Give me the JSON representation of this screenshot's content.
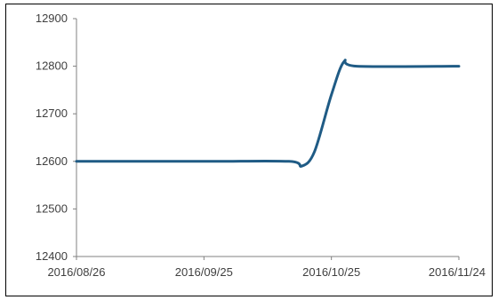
{
  "chart_data": {
    "type": "line",
    "title": "",
    "xlabel": "",
    "ylabel": "",
    "x_ticks": [
      "2016/08/26",
      "2016/09/25",
      "2016/10/25",
      "2016/11/24"
    ],
    "y_ticks": [
      "12400",
      "12500",
      "12600",
      "12700",
      "12800",
      "12900"
    ],
    "ylim": [
      12400,
      12900
    ],
    "x_range": [
      "2016/08/26",
      "2016/11/24"
    ],
    "grid": false,
    "legend": "none",
    "series": [
      {
        "color": "#1f5b85",
        "points": [
          {
            "x": "2016/08/26",
            "y": 12600
          },
          {
            "x": "2016/09/25",
            "y": 12600
          },
          {
            "x": "2016/10/15",
            "y": 12600
          },
          {
            "x": "2016/10/18",
            "y": 12590
          },
          {
            "x": "2016/10/21",
            "y": 12620
          },
          {
            "x": "2016/10/25",
            "y": 12740
          },
          {
            "x": "2016/10/28",
            "y": 12810
          },
          {
            "x": "2016/10/31",
            "y": 12800
          },
          {
            "x": "2016/11/24",
            "y": 12800
          }
        ]
      }
    ]
  }
}
